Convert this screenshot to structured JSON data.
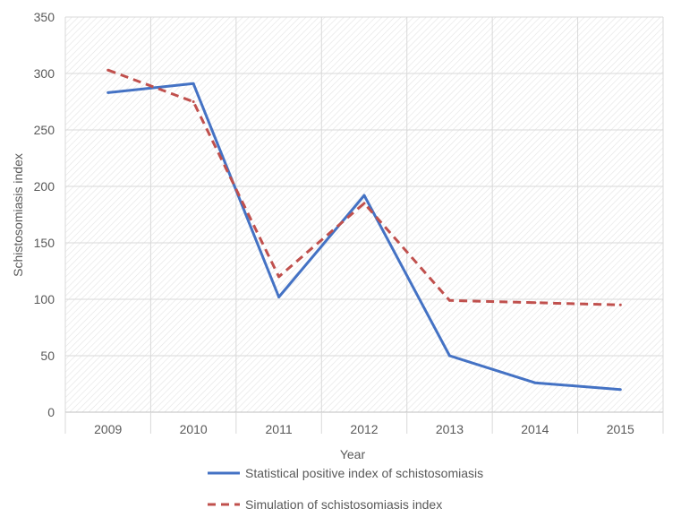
{
  "chart_data": {
    "type": "line",
    "title": "",
    "xlabel": "Year",
    "ylabel": "Schistosomiasis index",
    "categories": [
      "2009",
      "2010",
      "2011",
      "2012",
      "2013",
      "2014",
      "2015"
    ],
    "ylim": [
      0,
      350
    ],
    "yticks": [
      0,
      50,
      100,
      150,
      200,
      250,
      300,
      350
    ],
    "grid": true,
    "legend_position": "bottom",
    "series": [
      {
        "name": "Statistical positive index of schistosomiasis",
        "values": [
          283,
          291,
          102,
          192,
          50,
          26,
          20
        ],
        "color": "#4472c4",
        "style": "solid"
      },
      {
        "name": "Simulation of schistosomiasis index",
        "values": [
          303,
          275,
          120,
          185,
          99,
          97,
          95
        ],
        "color": "#c0504d",
        "style": "dashed"
      }
    ]
  }
}
